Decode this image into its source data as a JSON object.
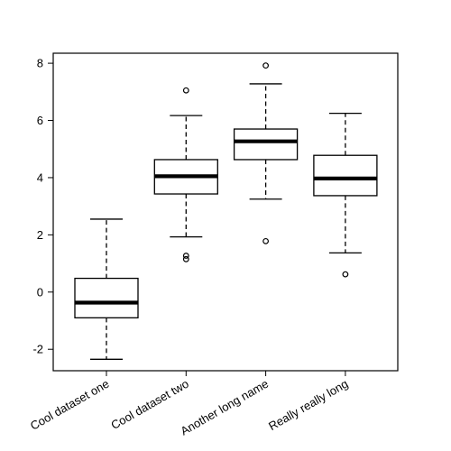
{
  "chart_data": {
    "type": "boxplot",
    "title": "",
    "xlabel": "",
    "ylabel": "",
    "ylim": [
      -2.75,
      8.35
    ],
    "y_ticks": [
      -2,
      0,
      2,
      4,
      6,
      8
    ],
    "categories": [
      "Cool dataset one",
      "Cool dataset two",
      "Another long name",
      "Really really long"
    ],
    "boxes": [
      {
        "whisker_low": -2.35,
        "q1": -0.9,
        "median": -0.37,
        "q3": 0.48,
        "whisker_high": 2.55,
        "outliers": []
      },
      {
        "whisker_low": 1.93,
        "q1": 3.43,
        "median": 4.05,
        "q3": 4.63,
        "whisker_high": 6.17,
        "outliers": [
          1.27,
          1.15,
          7.05
        ]
      },
      {
        "whisker_low": 3.25,
        "q1": 4.63,
        "median": 5.27,
        "q3": 5.7,
        "whisker_high": 7.28,
        "outliers": [
          1.78,
          7.92
        ]
      },
      {
        "whisker_low": 1.37,
        "q1": 3.37,
        "median": 3.97,
        "q3": 4.78,
        "whisker_high": 6.25,
        "outliers": [
          0.62
        ]
      }
    ],
    "grid": false,
    "legend": "none"
  }
}
